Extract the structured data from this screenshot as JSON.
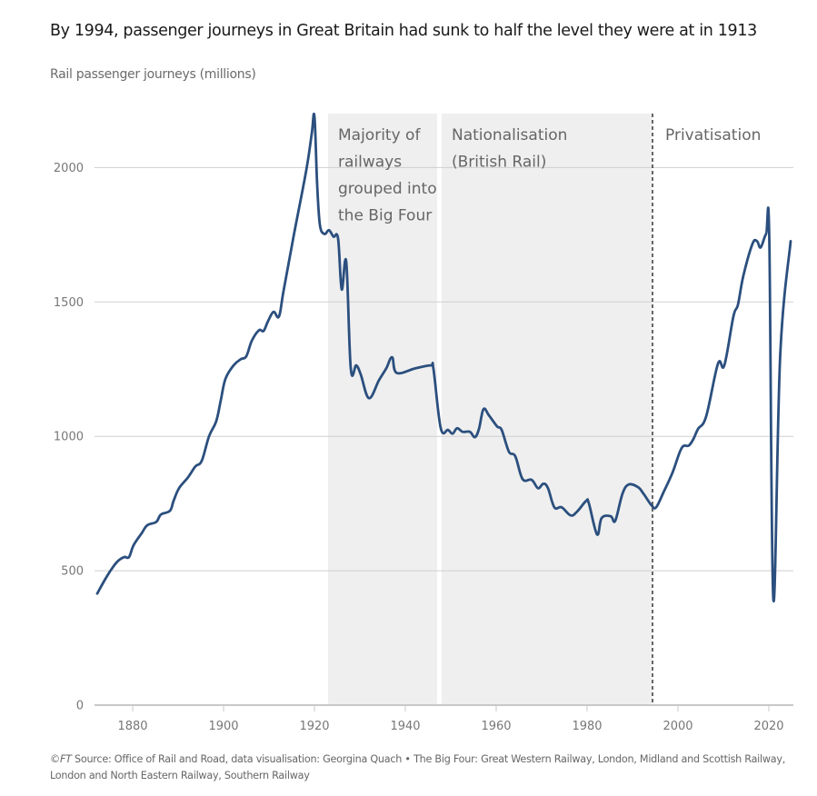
{
  "header": {
    "title": "By 1994, passenger journeys in Great Britain had sunk to half the level they were at in 1913",
    "subtitle": "Rail passenger journeys (millions)"
  },
  "footer": {
    "copyright": "©FT",
    "text": " Source: Office of Rail and Road, data visualisation: Georgina Quach • The Big Four: Great Western Railway, London, Midland and Scottish Railway, London and North Eastern Railway, Southern Railway"
  },
  "colors": {
    "line": "#2b4f7e",
    "shade": "#efefef",
    "grid": "#cfcfcf",
    "text_muted": "#777777"
  },
  "chart_data": {
    "type": "line",
    "title": "By 1994, passenger journeys in Great Britain had sunk to half the level they were at in 1913",
    "ylabel": "Rail passenger journeys (millions)",
    "xlabel": "",
    "xlim": [
      1871.5,
      2025.2
    ],
    "ylim": [
      0,
      2200
    ],
    "x_ticks": [
      1880,
      1900,
      1920,
      1940,
      1960,
      1980,
      2000,
      2020
    ],
    "y_ticks": [
      0,
      500,
      1000,
      1500,
      2000
    ],
    "grid": true,
    "legend": "none",
    "regions": [
      {
        "name": "big-four",
        "start": 1923,
        "end": 1947,
        "lines": [
          "Majority of",
          "railways",
          "grouped into",
          "the Big Four"
        ]
      },
      {
        "name": "nationalisation",
        "start": 1948,
        "end": 1994.2,
        "lines": [
          "Nationalisation",
          "(British Rail)"
        ]
      }
    ],
    "markers": [
      {
        "name": "privatisation",
        "x": 1995,
        "style": "dashed",
        "lines": [
          "Privatisation"
        ]
      }
    ],
    "series": [
      {
        "name": "Rail passenger journeys (millions)",
        "x": [
          1872.2,
          1874,
          1875.8,
          1877,
          1878.2,
          1879.2,
          1880.2,
          1882,
          1883.2,
          1885.2,
          1886.2,
          1888.2,
          1889,
          1890.2,
          1892.2,
          1893.8,
          1895.2,
          1896.8,
          1898.4,
          1899.4,
          1900.4,
          1902.2,
          1903.8,
          1905,
          1906.2,
          1907.8,
          1908.8,
          1909.8,
          1911,
          1912.2,
          1913.2,
          1915.4,
          1918.2,
          1919.4,
          1920,
          1920.6,
          1921.2,
          1922.2,
          1923.2,
          1924.2,
          1925.2,
          1926,
          1927,
          1928,
          1929.2,
          1930.2,
          1932,
          1934.2,
          1935.8,
          1937.1,
          1938.1,
          1942.2,
          1945.6,
          1946.2,
          1947.8,
          1949.4,
          1950.4,
          1951.4,
          1952.6,
          1954.2,
          1955.3,
          1956.2,
          1957.2,
          1958.4,
          1960.2,
          1961.2,
          1962.8,
          1964.2,
          1965.8,
          1967.8,
          1969.2,
          1970.4,
          1971.4,
          1972.8,
          1974.4,
          1976.4,
          1977.8,
          1979.8,
          1980.4,
          1982.2,
          1983.2,
          1985.2,
          1986.2,
          1987.8,
          1989.2,
          1991.2,
          1992.4,
          1994.2,
          1995.2,
          1996.8,
          1998.8,
          2000.8,
          2002.4,
          2003.4,
          2004.4,
          2006.2,
          2008.8,
          2010.2,
          2012.2,
          2013.2,
          2014.4,
          2016.4,
          2017.4,
          2018.2,
          2019.4,
          2020.1,
          2021,
          2022.5,
          2024.8
        ],
        "values": [
          415,
          470,
          517,
          540,
          551,
          551,
          595,
          640,
          669,
          682,
          709,
          723,
          760,
          807,
          848,
          888,
          909,
          1000,
          1057,
          1135,
          1213,
          1264,
          1287,
          1298,
          1355,
          1395,
          1392,
          1429,
          1463,
          1446,
          1541,
          1743,
          1990,
          2125,
          2190,
          1936,
          1787,
          1753,
          1767,
          1743,
          1736,
          1547,
          1649,
          1253,
          1264,
          1230,
          1142,
          1209,
          1253,
          1294,
          1236,
          1253,
          1264,
          1250,
          1030,
          1024,
          1010,
          1030,
          1017,
          1017,
          997,
          1027,
          1101,
          1078,
          1037,
          1024,
          943,
          926,
          841,
          838,
          807,
          824,
          807,
          736,
          736,
          706,
          720,
          760,
          750,
          635,
          696,
          703,
          686,
          787,
          821,
          811,
          787,
          743,
          736,
          791,
          865,
          956,
          966,
          990,
          1027,
          1074,
          1270,
          1264,
          1446,
          1490,
          1598,
          1716,
          1726,
          1703,
          1753,
          1736,
          392,
          1300,
          1726
        ]
      }
    ]
  }
}
